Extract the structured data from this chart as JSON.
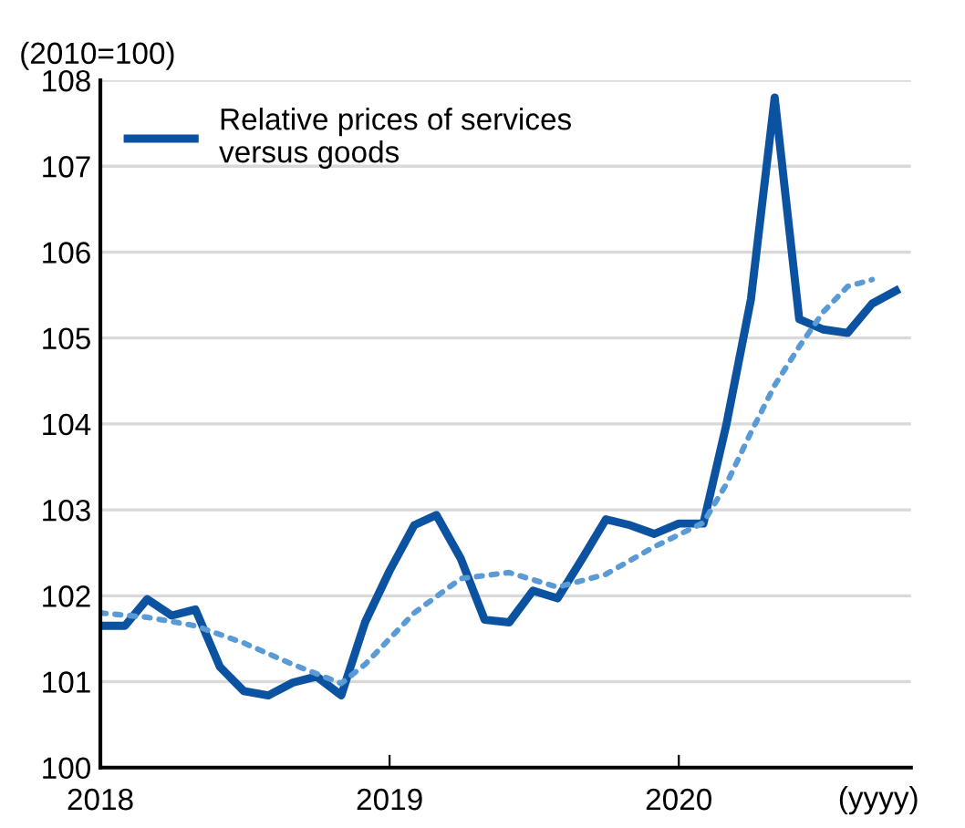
{
  "chart_data": {
    "type": "line",
    "ylabel": "(2010=100)",
    "xlabel": "(yyyy)",
    "x": [
      "2018-01",
      "2018-02",
      "2018-03",
      "2018-04",
      "2018-05",
      "2018-06",
      "2018-07",
      "2018-08",
      "2018-09",
      "2018-10",
      "2018-11",
      "2018-12",
      "2019-01",
      "2019-02",
      "2019-03",
      "2019-04",
      "2019-05",
      "2019-06",
      "2019-07",
      "2019-08",
      "2019-09",
      "2019-10",
      "2019-11",
      "2019-12",
      "2020-01",
      "2020-02",
      "2020-03",
      "2020-04",
      "2020-05",
      "2020-06",
      "2020-07",
      "2020-08",
      "2020-09",
      "2020-10"
    ],
    "series": [
      {
        "name": "Relative prices of services\nversus goods",
        "color": "#0b52a0",
        "line_style": "solid",
        "values": [
          101.65,
          101.65,
          101.96,
          101.77,
          101.84,
          101.17,
          100.89,
          100.84,
          100.99,
          101.06,
          100.84,
          101.69,
          102.29,
          102.82,
          102.94,
          102.43,
          101.72,
          101.69,
          102.06,
          101.97,
          102.43,
          102.89,
          102.82,
          102.72,
          102.84,
          102.84,
          103.99,
          105.45,
          107.8,
          105.22,
          105.1,
          105.06,
          105.4,
          105.55
        ]
      },
      {
        "type": "line",
        "color": "#5b9bd5",
        "line_style": "dotted",
        "x": [
          "2018-01",
          "2018-03",
          "2018-05",
          "2018-07",
          "2018-09",
          "2018-11",
          "2018-12",
          "2019-02",
          "2019-04",
          "2019-06",
          "2019-08",
          "2019-10",
          "2019-12",
          "2020-02",
          "2020-03",
          "2020-04",
          "2020-05",
          "2020-06",
          "2020-07",
          "2020-08",
          "2020-09"
        ],
        "values": [
          101.8,
          101.75,
          101.65,
          101.45,
          101.2,
          100.98,
          101.2,
          101.8,
          102.2,
          102.27,
          102.1,
          102.25,
          102.57,
          102.85,
          103.3,
          103.9,
          104.45,
          104.9,
          105.3,
          105.6,
          105.68
        ]
      }
    ],
    "xlim": [
      "2018-01-01",
      "2020-10-20"
    ],
    "xticks": [
      {
        "value": "2018-01-01",
        "label": "2018"
      },
      {
        "value": "2019-01-01",
        "label": "2019"
      },
      {
        "value": "2020-01-01",
        "label": "2020"
      }
    ],
    "ylim": [
      100,
      108
    ],
    "yticks": [
      100,
      101,
      102,
      103,
      104,
      105,
      106,
      107,
      108
    ],
    "grid": "y",
    "legend": "top left",
    "marker": "none"
  }
}
